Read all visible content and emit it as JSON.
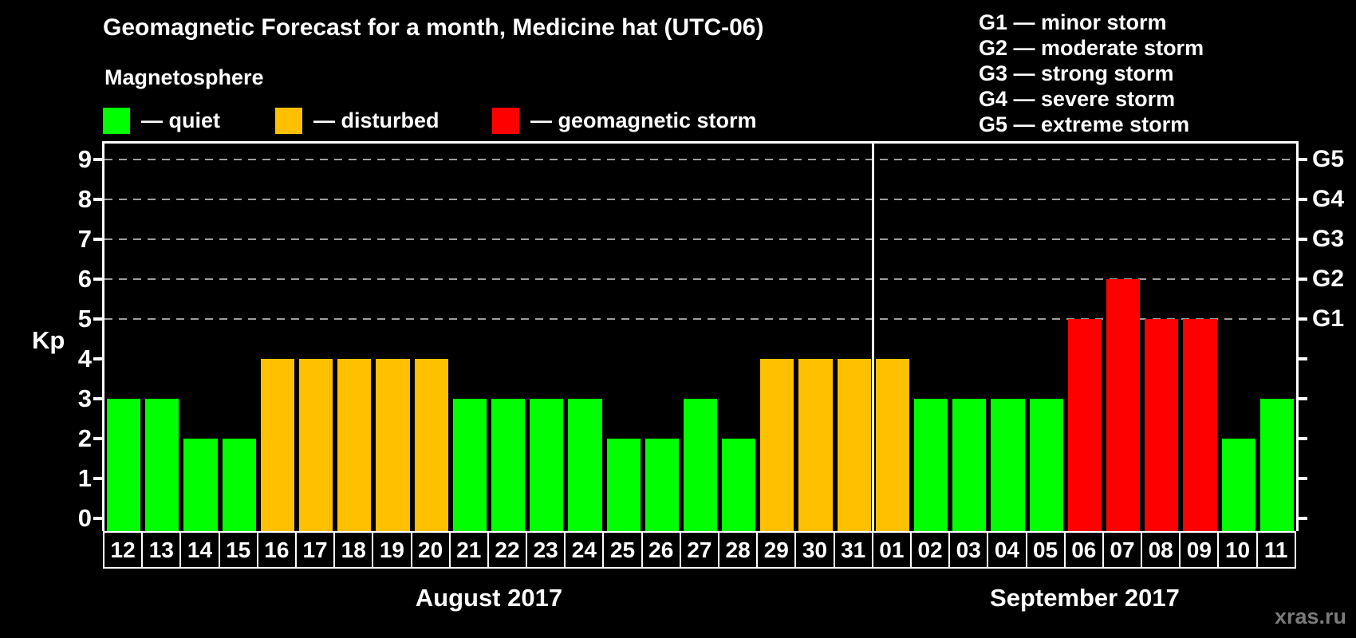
{
  "title": "Geomagnetic Forecast for a month, Medicine hat (UTC-06)",
  "watermark": "xras.ru",
  "magnetosphere_legend": {
    "heading": "Magnetosphere",
    "items": [
      {
        "label": "— quiet",
        "status": "quiet",
        "color": "#00ff00"
      },
      {
        "label": "— disturbed",
        "status": "disturbed",
        "color": "#ffc000"
      },
      {
        "label": "— geomagnetic storm",
        "status": "storm",
        "color": "#ff0000"
      }
    ]
  },
  "g_scale_legend": [
    "G1 — minor storm",
    "G2 — moderate storm",
    "G3 — strong storm",
    "G4 — severe storm",
    "G5 — extreme storm"
  ],
  "chart_data": {
    "type": "bar",
    "title": "Geomagnetic Forecast for a month, Medicine hat (UTC-06)",
    "ylabel": "Kp",
    "ylim": [
      -0.32,
      9.4
    ],
    "yticks": [
      0,
      1,
      2,
      3,
      4,
      5,
      6,
      7,
      8,
      9
    ],
    "grid_levels": [
      5,
      6,
      7,
      8,
      9
    ],
    "grid_style": "dashed",
    "legend_position": "top",
    "right_axis": [
      {
        "label": "G1",
        "kp": 5
      },
      {
        "label": "G2",
        "kp": 6
      },
      {
        "label": "G3",
        "kp": 7
      },
      {
        "label": "G4",
        "kp": 8
      },
      {
        "label": "G5",
        "kp": 9
      }
    ],
    "status_colors": {
      "quiet": "#00ff00",
      "disturbed": "#ffc000",
      "storm": "#ff0000"
    },
    "months": [
      {
        "label": "August 2017",
        "days": [
          {
            "day": "12",
            "kp": 3,
            "status": "quiet"
          },
          {
            "day": "13",
            "kp": 3,
            "status": "quiet"
          },
          {
            "day": "14",
            "kp": 2,
            "status": "quiet"
          },
          {
            "day": "15",
            "kp": 2,
            "status": "quiet"
          },
          {
            "day": "16",
            "kp": 4,
            "status": "disturbed"
          },
          {
            "day": "17",
            "kp": 4,
            "status": "disturbed"
          },
          {
            "day": "18",
            "kp": 4,
            "status": "disturbed"
          },
          {
            "day": "19",
            "kp": 4,
            "status": "disturbed"
          },
          {
            "day": "20",
            "kp": 4,
            "status": "disturbed"
          },
          {
            "day": "21",
            "kp": 3,
            "status": "quiet"
          },
          {
            "day": "22",
            "kp": 3,
            "status": "quiet"
          },
          {
            "day": "23",
            "kp": 3,
            "status": "quiet"
          },
          {
            "day": "24",
            "kp": 3,
            "status": "quiet"
          },
          {
            "day": "25",
            "kp": 2,
            "status": "quiet"
          },
          {
            "day": "26",
            "kp": 2,
            "status": "quiet"
          },
          {
            "day": "27",
            "kp": 3,
            "status": "quiet"
          },
          {
            "day": "28",
            "kp": 2,
            "status": "quiet"
          },
          {
            "day": "29",
            "kp": 4,
            "status": "disturbed"
          },
          {
            "day": "30",
            "kp": 4,
            "status": "disturbed"
          },
          {
            "day": "31",
            "kp": 4,
            "status": "disturbed"
          }
        ]
      },
      {
        "label": "September 2017",
        "days": [
          {
            "day": "01",
            "kp": 4,
            "status": "disturbed"
          },
          {
            "day": "02",
            "kp": 3,
            "status": "quiet"
          },
          {
            "day": "03",
            "kp": 3,
            "status": "quiet"
          },
          {
            "day": "04",
            "kp": 3,
            "status": "quiet"
          },
          {
            "day": "05",
            "kp": 3,
            "status": "quiet"
          },
          {
            "day": "06",
            "kp": 5,
            "status": "storm"
          },
          {
            "day": "07",
            "kp": 6,
            "status": "storm"
          },
          {
            "day": "08",
            "kp": 5,
            "status": "storm"
          },
          {
            "day": "09",
            "kp": 5,
            "status": "storm"
          },
          {
            "day": "10",
            "kp": 2,
            "status": "quiet"
          },
          {
            "day": "11",
            "kp": 3,
            "status": "quiet"
          }
        ]
      }
    ]
  }
}
